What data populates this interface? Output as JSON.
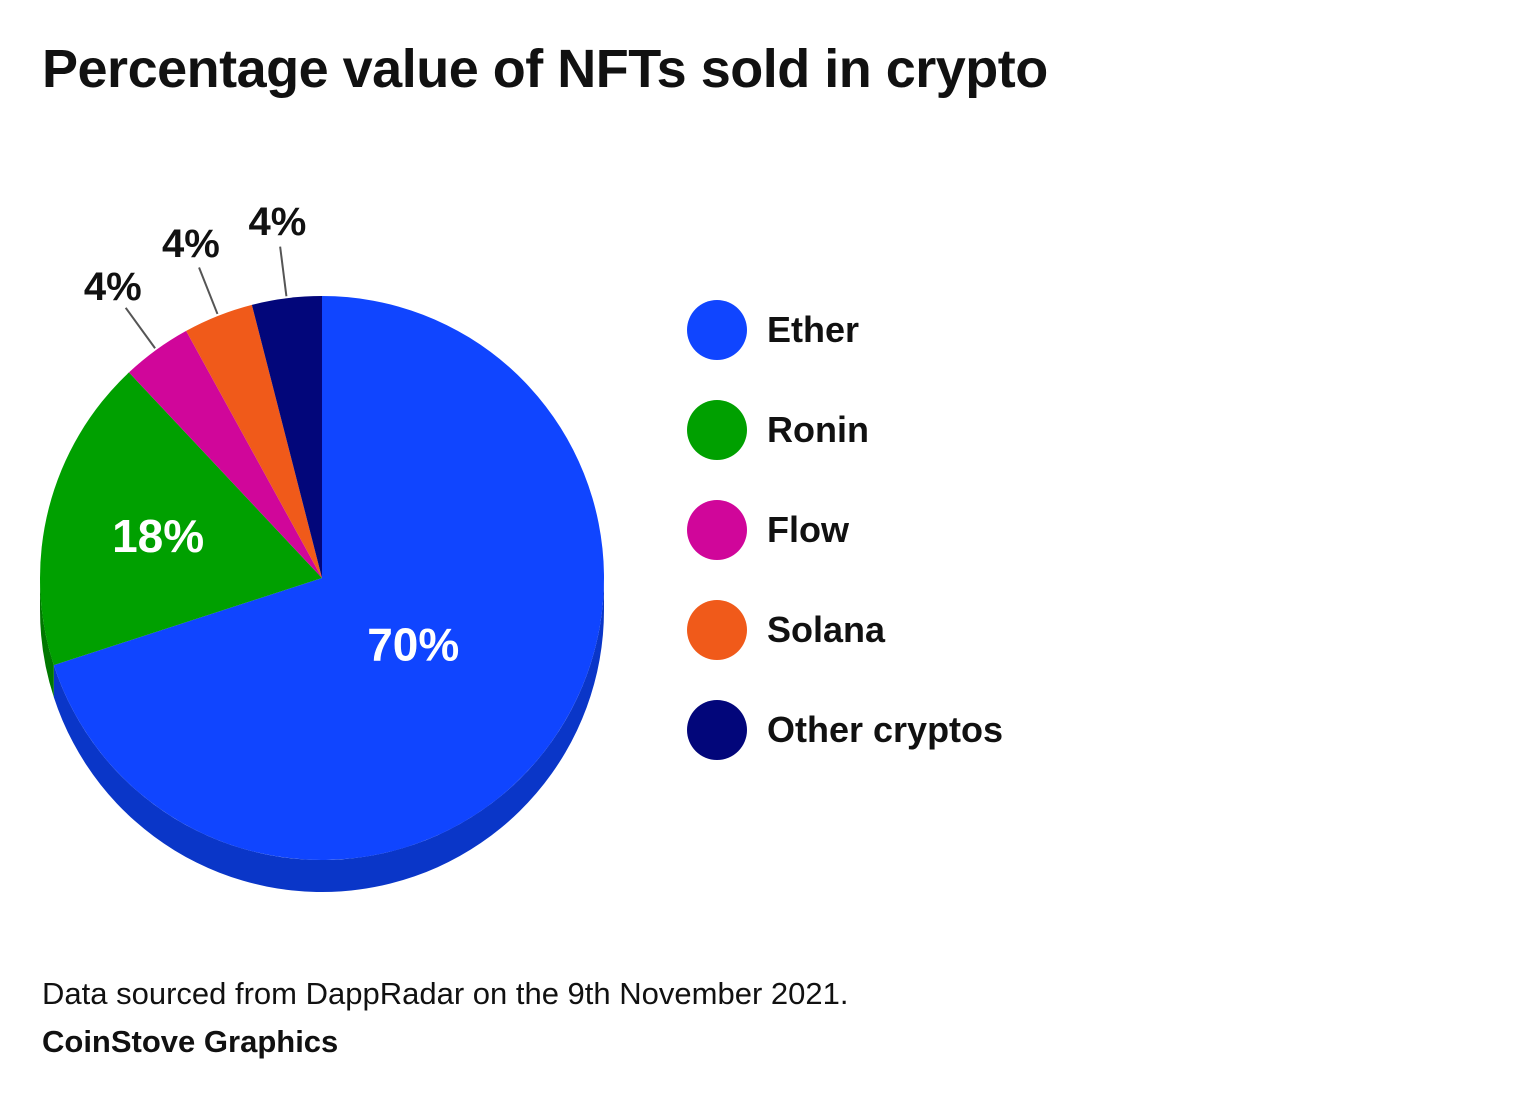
{
  "chart_data": {
    "type": "pie",
    "title": "Percentage value of NFTs sold in crypto",
    "categories": [
      "Ether",
      "Ronin",
      "Flow",
      "Solana",
      "Other cryptos"
    ],
    "values": [
      70,
      18,
      4,
      4,
      4
    ],
    "labels": [
      "70%",
      "18%",
      "4%",
      "4%",
      "4%"
    ],
    "colors": [
      "#1045ff",
      "#00a000",
      "#d0069a",
      "#f05a1a",
      "#02067a"
    ],
    "depth_colors": [
      "#0a36c8",
      "#007800",
      "#a00575",
      "#c04510",
      "#01045a"
    ],
    "legend": "right"
  },
  "footer": {
    "source": "Data sourced from DappRadar on the 9th November 2021.",
    "credit": "CoinStove Graphics"
  }
}
